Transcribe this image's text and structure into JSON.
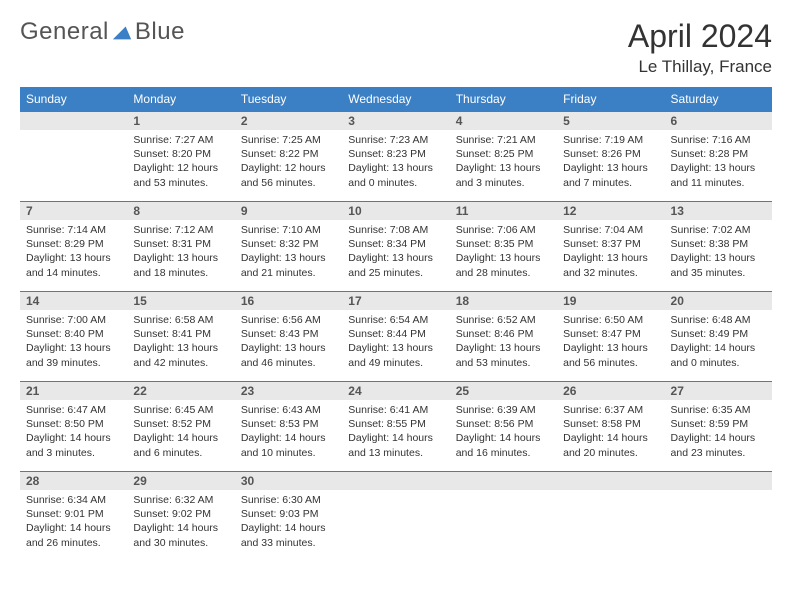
{
  "logo": {
    "text1": "General",
    "text2": "Blue"
  },
  "title": "April 2024",
  "location": "Le Thillay, France",
  "colors": {
    "header_bg": "#3b7fc4",
    "daynum_bg": "#e8e8e8",
    "rule": "#3b7fc4"
  },
  "day_headers": [
    "Sunday",
    "Monday",
    "Tuesday",
    "Wednesday",
    "Thursday",
    "Friday",
    "Saturday"
  ],
  "weeks": [
    [
      {
        "empty": true
      },
      {
        "num": "1",
        "sunrise": "Sunrise: 7:27 AM",
        "sunset": "Sunset: 8:20 PM",
        "day1": "Daylight: 12 hours",
        "day2": "and 53 minutes."
      },
      {
        "num": "2",
        "sunrise": "Sunrise: 7:25 AM",
        "sunset": "Sunset: 8:22 PM",
        "day1": "Daylight: 12 hours",
        "day2": "and 56 minutes."
      },
      {
        "num": "3",
        "sunrise": "Sunrise: 7:23 AM",
        "sunset": "Sunset: 8:23 PM",
        "day1": "Daylight: 13 hours",
        "day2": "and 0 minutes."
      },
      {
        "num": "4",
        "sunrise": "Sunrise: 7:21 AM",
        "sunset": "Sunset: 8:25 PM",
        "day1": "Daylight: 13 hours",
        "day2": "and 3 minutes."
      },
      {
        "num": "5",
        "sunrise": "Sunrise: 7:19 AM",
        "sunset": "Sunset: 8:26 PM",
        "day1": "Daylight: 13 hours",
        "day2": "and 7 minutes."
      },
      {
        "num": "6",
        "sunrise": "Sunrise: 7:16 AM",
        "sunset": "Sunset: 8:28 PM",
        "day1": "Daylight: 13 hours",
        "day2": "and 11 minutes."
      }
    ],
    [
      {
        "num": "7",
        "sunrise": "Sunrise: 7:14 AM",
        "sunset": "Sunset: 8:29 PM",
        "day1": "Daylight: 13 hours",
        "day2": "and 14 minutes."
      },
      {
        "num": "8",
        "sunrise": "Sunrise: 7:12 AM",
        "sunset": "Sunset: 8:31 PM",
        "day1": "Daylight: 13 hours",
        "day2": "and 18 minutes."
      },
      {
        "num": "9",
        "sunrise": "Sunrise: 7:10 AM",
        "sunset": "Sunset: 8:32 PM",
        "day1": "Daylight: 13 hours",
        "day2": "and 21 minutes."
      },
      {
        "num": "10",
        "sunrise": "Sunrise: 7:08 AM",
        "sunset": "Sunset: 8:34 PM",
        "day1": "Daylight: 13 hours",
        "day2": "and 25 minutes."
      },
      {
        "num": "11",
        "sunrise": "Sunrise: 7:06 AM",
        "sunset": "Sunset: 8:35 PM",
        "day1": "Daylight: 13 hours",
        "day2": "and 28 minutes."
      },
      {
        "num": "12",
        "sunrise": "Sunrise: 7:04 AM",
        "sunset": "Sunset: 8:37 PM",
        "day1": "Daylight: 13 hours",
        "day2": "and 32 minutes."
      },
      {
        "num": "13",
        "sunrise": "Sunrise: 7:02 AM",
        "sunset": "Sunset: 8:38 PM",
        "day1": "Daylight: 13 hours",
        "day2": "and 35 minutes."
      }
    ],
    [
      {
        "num": "14",
        "sunrise": "Sunrise: 7:00 AM",
        "sunset": "Sunset: 8:40 PM",
        "day1": "Daylight: 13 hours",
        "day2": "and 39 minutes."
      },
      {
        "num": "15",
        "sunrise": "Sunrise: 6:58 AM",
        "sunset": "Sunset: 8:41 PM",
        "day1": "Daylight: 13 hours",
        "day2": "and 42 minutes."
      },
      {
        "num": "16",
        "sunrise": "Sunrise: 6:56 AM",
        "sunset": "Sunset: 8:43 PM",
        "day1": "Daylight: 13 hours",
        "day2": "and 46 minutes."
      },
      {
        "num": "17",
        "sunrise": "Sunrise: 6:54 AM",
        "sunset": "Sunset: 8:44 PM",
        "day1": "Daylight: 13 hours",
        "day2": "and 49 minutes."
      },
      {
        "num": "18",
        "sunrise": "Sunrise: 6:52 AM",
        "sunset": "Sunset: 8:46 PM",
        "day1": "Daylight: 13 hours",
        "day2": "and 53 minutes."
      },
      {
        "num": "19",
        "sunrise": "Sunrise: 6:50 AM",
        "sunset": "Sunset: 8:47 PM",
        "day1": "Daylight: 13 hours",
        "day2": "and 56 minutes."
      },
      {
        "num": "20",
        "sunrise": "Sunrise: 6:48 AM",
        "sunset": "Sunset: 8:49 PM",
        "day1": "Daylight: 14 hours",
        "day2": "and 0 minutes."
      }
    ],
    [
      {
        "num": "21",
        "sunrise": "Sunrise: 6:47 AM",
        "sunset": "Sunset: 8:50 PM",
        "day1": "Daylight: 14 hours",
        "day2": "and 3 minutes."
      },
      {
        "num": "22",
        "sunrise": "Sunrise: 6:45 AM",
        "sunset": "Sunset: 8:52 PM",
        "day1": "Daylight: 14 hours",
        "day2": "and 6 minutes."
      },
      {
        "num": "23",
        "sunrise": "Sunrise: 6:43 AM",
        "sunset": "Sunset: 8:53 PM",
        "day1": "Daylight: 14 hours",
        "day2": "and 10 minutes."
      },
      {
        "num": "24",
        "sunrise": "Sunrise: 6:41 AM",
        "sunset": "Sunset: 8:55 PM",
        "day1": "Daylight: 14 hours",
        "day2": "and 13 minutes."
      },
      {
        "num": "25",
        "sunrise": "Sunrise: 6:39 AM",
        "sunset": "Sunset: 8:56 PM",
        "day1": "Daylight: 14 hours",
        "day2": "and 16 minutes."
      },
      {
        "num": "26",
        "sunrise": "Sunrise: 6:37 AM",
        "sunset": "Sunset: 8:58 PM",
        "day1": "Daylight: 14 hours",
        "day2": "and 20 minutes."
      },
      {
        "num": "27",
        "sunrise": "Sunrise: 6:35 AM",
        "sunset": "Sunset: 8:59 PM",
        "day1": "Daylight: 14 hours",
        "day2": "and 23 minutes."
      }
    ],
    [
      {
        "num": "28",
        "sunrise": "Sunrise: 6:34 AM",
        "sunset": "Sunset: 9:01 PM",
        "day1": "Daylight: 14 hours",
        "day2": "and 26 minutes."
      },
      {
        "num": "29",
        "sunrise": "Sunrise: 6:32 AM",
        "sunset": "Sunset: 9:02 PM",
        "day1": "Daylight: 14 hours",
        "day2": "and 30 minutes."
      },
      {
        "num": "30",
        "sunrise": "Sunrise: 6:30 AM",
        "sunset": "Sunset: 9:03 PM",
        "day1": "Daylight: 14 hours",
        "day2": "and 33 minutes."
      },
      {
        "empty": true
      },
      {
        "empty": true
      },
      {
        "empty": true
      },
      {
        "empty": true
      }
    ]
  ]
}
